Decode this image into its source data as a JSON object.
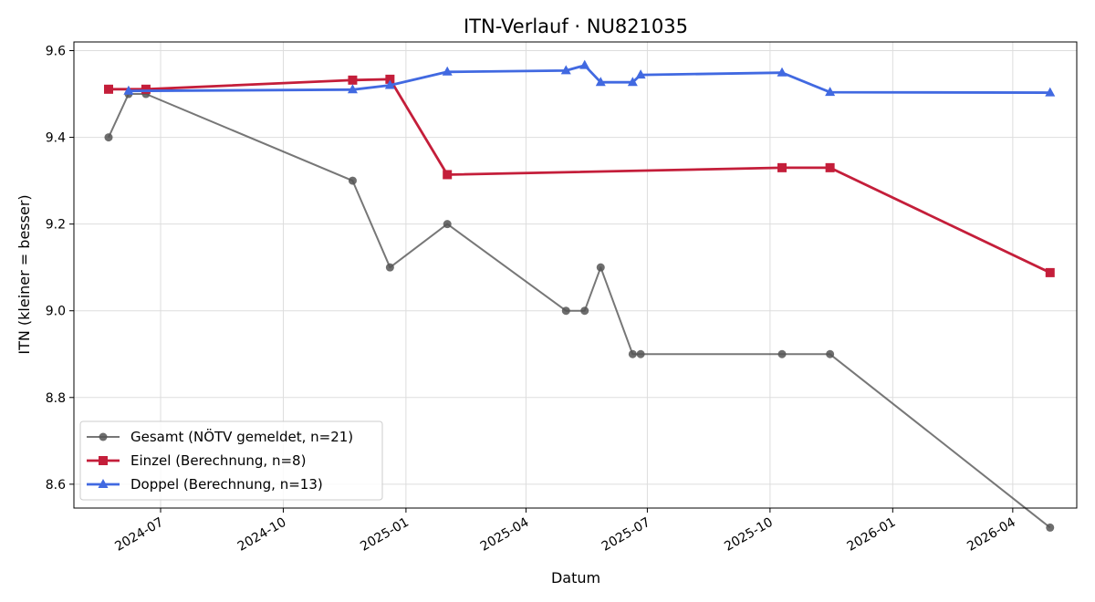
{
  "chart_data": {
    "type": "line",
    "title": "ITN-Verlauf · NU821035",
    "xlabel": "Datum",
    "ylabel": "ITN  (kleiner = besser)",
    "xlim": [
      "2024-04-27",
      "2026-05-19"
    ],
    "ylim": [
      8.545,
      9.62
    ],
    "x_ticks": [
      "2024-07",
      "2024-10",
      "2025-01",
      "2025-04",
      "2025-07",
      "2025-10",
      "2026-01",
      "2026-04"
    ],
    "y_ticks": [
      "8.6",
      "8.8",
      "9.0",
      "9.2",
      "9.4",
      "9.6"
    ],
    "grid": true,
    "legend_position": "lower-left",
    "series": [
      {
        "name": "Gesamt (NÖTV gemeldet, n=21)",
        "color": "#555555",
        "marker": "circle",
        "points": [
          {
            "x": "2024-05-23",
            "y": 9.4
          },
          {
            "x": "2024-06-07",
            "y": 9.5
          },
          {
            "x": "2024-06-20",
            "y": 9.5
          },
          {
            "x": "2024-11-22",
            "y": 9.3
          },
          {
            "x": "2024-12-20",
            "y": 9.1
          },
          {
            "x": "2025-02-01",
            "y": 9.2
          },
          {
            "x": "2025-05-01",
            "y": 9.0
          },
          {
            "x": "2025-05-15",
            "y": 9.0
          },
          {
            "x": "2025-05-27",
            "y": 9.1
          },
          {
            "x": "2025-06-20",
            "y": 8.9
          },
          {
            "x": "2025-06-26",
            "y": 8.9
          },
          {
            "x": "2025-10-10",
            "y": 8.9
          },
          {
            "x": "2025-11-15",
            "y": 8.9
          },
          {
            "x": "2026-04-29",
            "y": 8.5
          }
        ]
      },
      {
        "name": "Einzel (Berechnung, n=8)",
        "color": "#c41e3a",
        "marker": "square",
        "points": [
          {
            "x": "2024-05-23",
            "y": 9.511
          },
          {
            "x": "2024-06-20",
            "y": 9.511
          },
          {
            "x": "2024-11-22",
            "y": 9.532
          },
          {
            "x": "2024-12-20",
            "y": 9.534
          },
          {
            "x": "2025-02-01",
            "y": 9.314
          },
          {
            "x": "2025-10-10",
            "y": 9.33
          },
          {
            "x": "2025-11-15",
            "y": 9.33
          },
          {
            "x": "2026-04-29",
            "y": 9.088
          }
        ]
      },
      {
        "name": "Doppel (Berechnung, n=13)",
        "color": "#4169e1",
        "marker": "triangle",
        "points": [
          {
            "x": "2024-06-07",
            "y": 9.507
          },
          {
            "x": "2024-11-22",
            "y": 9.51
          },
          {
            "x": "2024-12-20",
            "y": 9.52
          },
          {
            "x": "2025-02-01",
            "y": 9.551
          },
          {
            "x": "2025-05-01",
            "y": 9.554
          },
          {
            "x": "2025-05-15",
            "y": 9.566
          },
          {
            "x": "2025-05-27",
            "y": 9.527
          },
          {
            "x": "2025-06-20",
            "y": 9.527
          },
          {
            "x": "2025-06-26",
            "y": 9.544
          },
          {
            "x": "2025-10-10",
            "y": 9.549
          },
          {
            "x": "2025-11-15",
            "y": 9.504
          },
          {
            "x": "2026-04-29",
            "y": 9.503
          }
        ]
      }
    ]
  }
}
